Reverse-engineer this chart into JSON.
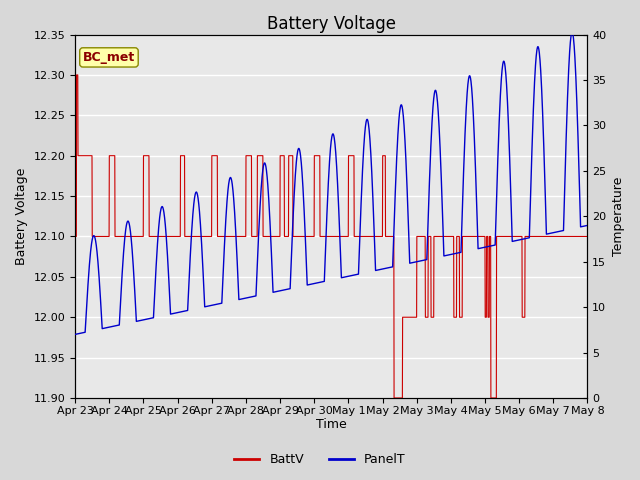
{
  "title": "Battery Voltage",
  "xlabel": "Time",
  "ylabel_left": "Battery Voltage",
  "ylabel_right": "Temperature",
  "ylim_left": [
    11.9,
    12.35
  ],
  "ylim_right": [
    0,
    40
  ],
  "yticks_left": [
    11.9,
    11.95,
    12.0,
    12.05,
    12.1,
    12.15,
    12.2,
    12.25,
    12.3,
    12.35
  ],
  "yticks_right": [
    0,
    5,
    10,
    15,
    20,
    25,
    30,
    35,
    40
  ],
  "xtick_labels": [
    "Apr 23",
    "Apr 24",
    "Apr 25",
    "Apr 26",
    "Apr 27",
    "Apr 28",
    "Apr 29",
    "Apr 30",
    "May 1",
    "May 2",
    "May 3",
    "May 4",
    "May 5",
    "May 6",
    "May 7",
    "May 8"
  ],
  "batt_color": "#cc0000",
  "panel_color": "#0000cc",
  "bg_color": "#d8d8d8",
  "plot_bg_outer": "#cccccc",
  "plot_bg_inner": "#e8e8e8",
  "grid_color": "#ffffff",
  "annotation_label": "BC_met",
  "annotation_bg": "#ffffaa",
  "annotation_border": "#888800",
  "legend_entries": [
    "BattV",
    "PanelT"
  ],
  "title_fontsize": 12,
  "label_fontsize": 9,
  "tick_fontsize": 8,
  "n_days": 15
}
